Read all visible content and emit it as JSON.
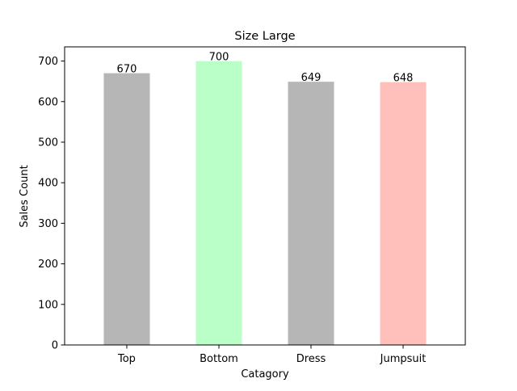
{
  "chart_data": {
    "type": "bar",
    "title": "Size Large",
    "xlabel": "Catagory",
    "ylabel": "Sales Count",
    "categories": [
      "Top",
      "Bottom",
      "Dress",
      "Jumpsuit"
    ],
    "values": [
      670,
      700,
      649,
      648
    ],
    "data_labels": [
      "670",
      "700",
      "649",
      "648"
    ],
    "bar_colors": [
      "#b7b6b6",
      "#bbffc8",
      "#b7b6b6",
      "#ffbfbb"
    ],
    "ylim": [
      0,
      735
    ],
    "yticks": [
      0,
      100,
      200,
      300,
      400,
      500,
      600,
      700
    ],
    "ytick_labels": [
      "0",
      "100",
      "200",
      "300",
      "400",
      "500",
      "600",
      "700"
    ],
    "grid": false,
    "legend": "none"
  }
}
